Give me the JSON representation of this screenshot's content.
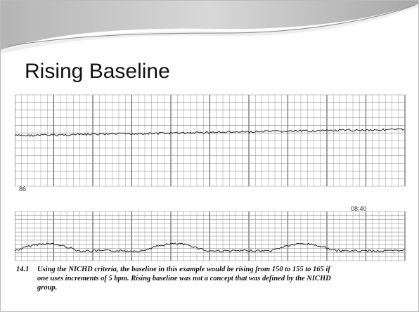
{
  "title": "Rising Baseline",
  "tracing": {
    "upper_label": "86",
    "time_label": "08:40"
  },
  "caption": {
    "number": "14.1",
    "lines": [
      "Using the NICHD criteria, the baseline in this example would be rising from 150 to 155 to 165 if",
      "one uses increments of 5 bpm. Rising baseline was not a concept that was defined by the NICHD",
      "group."
    ]
  }
}
